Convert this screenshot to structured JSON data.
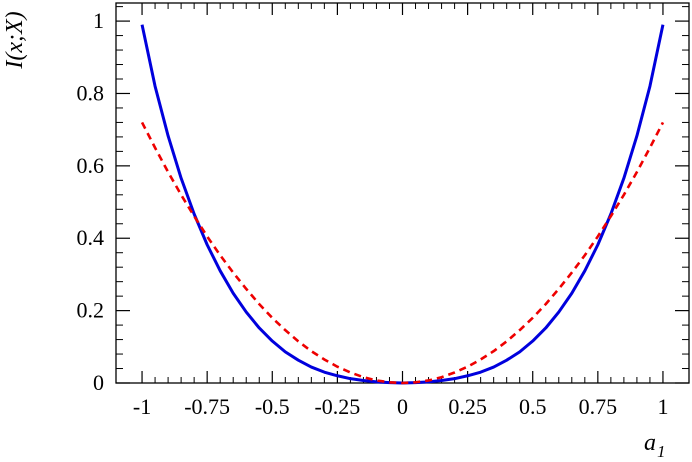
{
  "chart_data": {
    "type": "line",
    "xlabel": "a",
    "xlabel_subscript": "1",
    "ylabel": "I(x;X)",
    "xlim": [
      -1.1,
      1.1
    ],
    "ylim": [
      0,
      1.05
    ],
    "x_ticks": [
      -1,
      -0.75,
      -0.5,
      -0.25,
      0,
      0.25,
      0.5,
      0.75,
      1
    ],
    "x_tick_labels": [
      "-1",
      "-0.75",
      "-0.5",
      "-0.25",
      "0",
      "0.25",
      "0.5",
      "0.75",
      "1"
    ],
    "y_ticks": [
      0,
      0.2,
      0.4,
      0.6,
      0.8,
      1
    ],
    "y_tick_labels": [
      "0",
      "0.2",
      "0.4",
      "0.6",
      "0.8",
      "1"
    ],
    "grid": false,
    "series": [
      {
        "style": "solid",
        "color": "#0000dd",
        "x": [
          -1,
          -0.95,
          -0.9,
          -0.85,
          -0.8,
          -0.75,
          -0.7,
          -0.65,
          -0.6,
          -0.55,
          -0.5,
          -0.45,
          -0.4,
          -0.35,
          -0.3,
          -0.25,
          -0.2,
          -0.15,
          -0.1,
          -0.05,
          0,
          0.05,
          0.1,
          0.15,
          0.2,
          0.25,
          0.3,
          0.35,
          0.4,
          0.45,
          0.5,
          0.55,
          0.6,
          0.65,
          0.7,
          0.75,
          0.8,
          0.85,
          0.9,
          0.95,
          1
        ],
        "y": [
          0.99,
          0.82,
          0.683,
          0.566,
          0.467,
          0.382,
          0.31,
          0.248,
          0.196,
          0.152,
          0.116,
          0.086,
          0.063,
          0.044,
          0.03,
          0.02,
          0.012,
          0.007,
          0.003,
          0.001,
          0,
          0.001,
          0.003,
          0.007,
          0.012,
          0.02,
          0.03,
          0.044,
          0.063,
          0.086,
          0.116,
          0.152,
          0.196,
          0.248,
          0.31,
          0.382,
          0.467,
          0.566,
          0.683,
          0.82,
          0.99
        ]
      },
      {
        "style": "dashed",
        "color": "#ee0000",
        "x": [
          -1,
          -0.95,
          -0.9,
          -0.85,
          -0.8,
          -0.75,
          -0.7,
          -0.65,
          -0.6,
          -0.55,
          -0.5,
          -0.45,
          -0.4,
          -0.35,
          -0.3,
          -0.25,
          -0.2,
          -0.15,
          -0.1,
          -0.05,
          0,
          0.05,
          0.1,
          0.15,
          0.2,
          0.25,
          0.3,
          0.35,
          0.4,
          0.45,
          0.5,
          0.55,
          0.6,
          0.65,
          0.7,
          0.75,
          0.8,
          0.85,
          0.9,
          0.95,
          1
        ],
        "y": [
          0.72,
          0.65,
          0.583,
          0.52,
          0.461,
          0.405,
          0.353,
          0.305,
          0.26,
          0.218,
          0.18,
          0.146,
          0.115,
          0.088,
          0.065,
          0.045,
          0.029,
          0.016,
          0.007,
          0.002,
          0,
          0.002,
          0.007,
          0.016,
          0.029,
          0.045,
          0.065,
          0.088,
          0.115,
          0.146,
          0.18,
          0.218,
          0.26,
          0.305,
          0.353,
          0.405,
          0.461,
          0.52,
          0.583,
          0.65,
          0.72
        ]
      }
    ]
  }
}
